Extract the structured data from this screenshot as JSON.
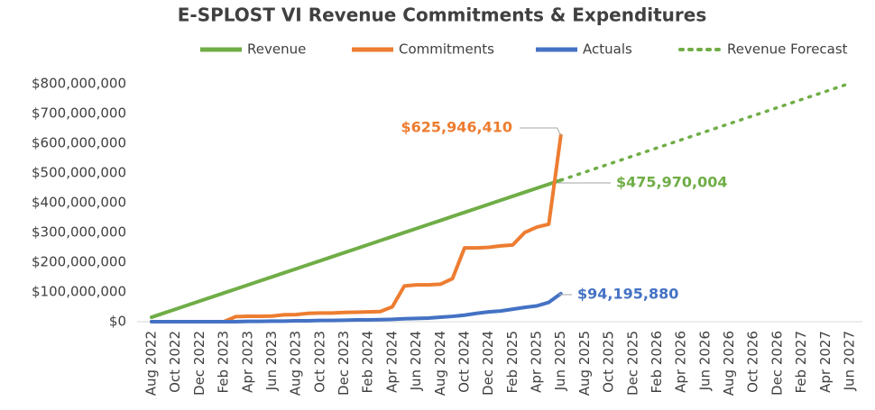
{
  "chart_data": {
    "type": "line",
    "title": "E-SPLOST VI Revenue Commitments & Expenditures",
    "legend": "top",
    "categories": [
      "Aug 2022",
      null,
      "Oct 2022",
      null,
      "Dec 2022",
      null,
      "Feb 2023",
      null,
      "Apr 2023",
      null,
      "Jun 2023",
      null,
      "Aug 2023",
      null,
      "Oct 2023",
      null,
      "Dec 2023",
      null,
      "Feb 2024",
      null,
      "Apr 2024",
      null,
      "Jun 2024",
      null,
      "Aug 2024",
      null,
      "Oct 2024",
      null,
      "Dec 2024",
      null,
      "Feb 2025",
      null,
      "Apr 2025",
      null,
      "Jun 2025",
      null,
      "Aug 2025",
      null,
      "Oct 2025",
      null,
      "Dec 2025",
      null,
      "Feb 2026",
      null,
      "Apr 2026",
      null,
      "Jun 2026",
      null,
      "Aug 2026",
      null,
      "Oct 2026",
      null,
      "Dec 2026",
      null,
      "Feb 2027",
      null,
      "Apr 2027",
      null,
      "Jun 2027"
    ],
    "ylim": [
      0,
      800000000
    ],
    "yticks": [
      {
        "value": 0,
        "label": "$0"
      },
      {
        "value": 100000000,
        "label": "$100,000,000"
      },
      {
        "value": 200000000,
        "label": "$200,000,000"
      },
      {
        "value": 300000000,
        "label": "$300,000,000"
      },
      {
        "value": 400000000,
        "label": "$400,000,000"
      },
      {
        "value": 500000000,
        "label": "$500,000,000"
      },
      {
        "value": 600000000,
        "label": "$600,000,000"
      },
      {
        "value": 700000000,
        "label": "$700,000,000"
      },
      {
        "value": 800000000,
        "label": "$800,000,000"
      }
    ],
    "series": [
      {
        "name": "Revenue",
        "color": "#70ad47",
        "style": "solid",
        "values": [
          15000000,
          28600000,
          42100000,
          55700000,
          69200000,
          82800000,
          96400000,
          109900000,
          123500000,
          137000000,
          150600000,
          164200000,
          177700000,
          191300000,
          204800000,
          218400000,
          232000000,
          245500000,
          259100000,
          272600000,
          286200000,
          299800000,
          313300000,
          326900000,
          340400000,
          354000000,
          367600000,
          381100000,
          394700000,
          408200000,
          421800000,
          435400000,
          448900000,
          462500000,
          475970004,
          null,
          null,
          null,
          null,
          null,
          null,
          null,
          null,
          null,
          null,
          null,
          null,
          null,
          null,
          null,
          null,
          null,
          null,
          null,
          null,
          null,
          null,
          null,
          null
        ],
        "value_labels": [
          null,
          null,
          null,
          null,
          null,
          null,
          null,
          null,
          null,
          null,
          null,
          null,
          null,
          null,
          null,
          null,
          null,
          null,
          null,
          null,
          null,
          null,
          null,
          null,
          null,
          null,
          null,
          null,
          null,
          null,
          null,
          null,
          null,
          null,
          "$475,970,004",
          null,
          null,
          null,
          null,
          null,
          null,
          null,
          null,
          null,
          null,
          null,
          null,
          null,
          null,
          null,
          null,
          null,
          null,
          null,
          null,
          null,
          null,
          null,
          null
        ]
      },
      {
        "name": "Commitments",
        "color": "#ed7d31",
        "style": "solid",
        "values": [
          0,
          0,
          0,
          0,
          0,
          0,
          0,
          17000000,
          18000000,
          18000000,
          19000000,
          23000000,
          24000000,
          28000000,
          29000000,
          29000000,
          31000000,
          32000000,
          33000000,
          34000000,
          50000000,
          120000000,
          124000000,
          124000000,
          126000000,
          145000000,
          248000000,
          248000000,
          250000000,
          255000000,
          258000000,
          300000000,
          318000000,
          328000000,
          625946410,
          null,
          null,
          null,
          null,
          null,
          null,
          null,
          null,
          null,
          null,
          null,
          null,
          null,
          null,
          null,
          null,
          null,
          null,
          null,
          null,
          null,
          null,
          null,
          null
        ],
        "value_labels": [
          null,
          null,
          null,
          null,
          null,
          null,
          null,
          null,
          null,
          null,
          null,
          null,
          null,
          null,
          null,
          null,
          null,
          null,
          null,
          null,
          null,
          null,
          null,
          null,
          null,
          null,
          null,
          null,
          null,
          null,
          null,
          null,
          null,
          null,
          "$625,946,410",
          null,
          null,
          null,
          null,
          null,
          null,
          null,
          null,
          null,
          null,
          null,
          null,
          null,
          null,
          null,
          null,
          null,
          null,
          null,
          null,
          null,
          null,
          null,
          null
        ]
      },
      {
        "name": "Actuals",
        "color": "#4472c4",
        "style": "solid",
        "values": [
          0,
          0,
          0,
          0,
          0,
          0,
          0,
          0,
          1000000,
          1000000,
          2000000,
          2000000,
          3000000,
          3000000,
          4000000,
          4000000,
          5000000,
          6000000,
          6000000,
          7000000,
          8000000,
          10000000,
          11000000,
          12000000,
          15000000,
          18000000,
          22000000,
          28000000,
          33000000,
          36000000,
          42000000,
          48000000,
          53000000,
          65000000,
          94195880,
          null,
          null,
          null,
          null,
          null,
          null,
          null,
          null,
          null,
          null,
          null,
          null,
          null,
          null,
          null,
          null,
          null,
          null,
          null,
          null,
          null,
          null,
          null,
          null
        ],
        "value_labels": [
          null,
          null,
          null,
          null,
          null,
          null,
          null,
          null,
          null,
          null,
          null,
          null,
          null,
          null,
          null,
          null,
          null,
          null,
          null,
          null,
          null,
          null,
          null,
          null,
          null,
          null,
          null,
          null,
          null,
          null,
          null,
          null,
          null,
          null,
          "$94,195,880",
          null,
          null,
          null,
          null,
          null,
          null,
          null,
          null,
          null,
          null,
          null,
          null,
          null,
          null,
          null,
          null,
          null,
          null,
          null,
          null,
          null,
          null,
          null,
          null
        ]
      },
      {
        "name": "Revenue Forecast",
        "color": "#70ad47",
        "style": "dotted",
        "values": [
          null,
          null,
          null,
          null,
          null,
          null,
          null,
          null,
          null,
          null,
          null,
          null,
          null,
          null,
          null,
          null,
          null,
          null,
          null,
          null,
          null,
          null,
          null,
          null,
          null,
          null,
          null,
          null,
          null,
          null,
          null,
          null,
          null,
          null,
          475970004,
          489500000,
          503100000,
          516700000,
          530200000,
          543800000,
          557400000,
          570900000,
          584500000,
          598000000,
          611600000,
          625200000,
          638700000,
          652300000,
          665800000,
          679400000,
          693000000,
          706500000,
          720100000,
          733600000,
          747200000,
          760800000,
          774300000,
          787900000,
          801400000
        ]
      }
    ]
  }
}
